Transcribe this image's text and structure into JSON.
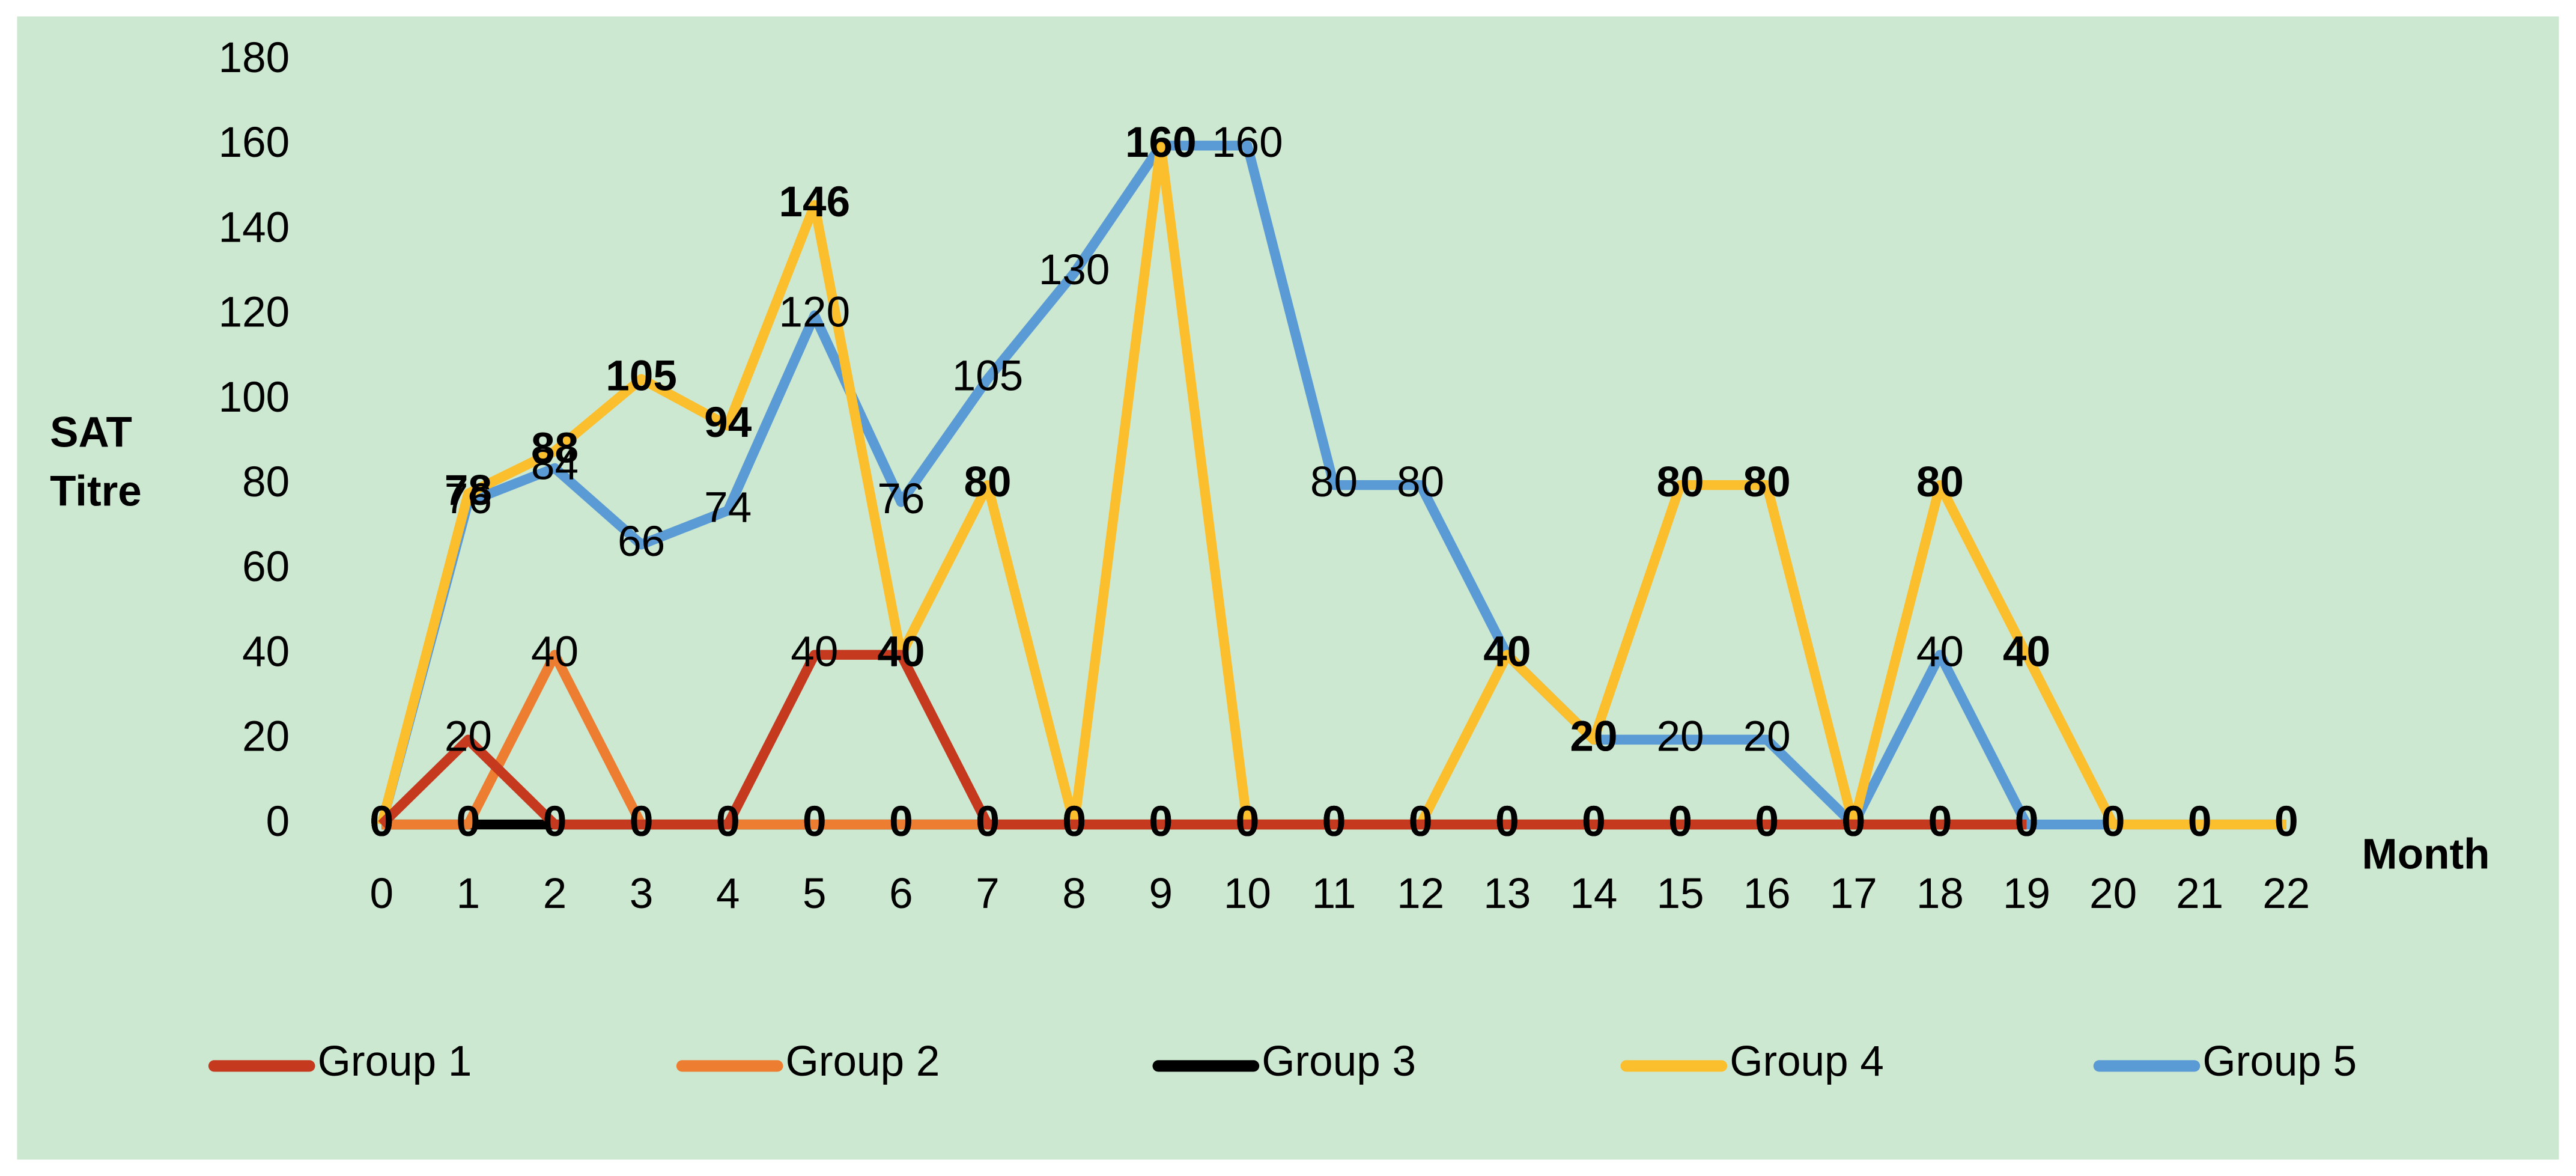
{
  "chart_data": {
    "type": "line",
    "y_label": "SAT Titre",
    "x_label": "Month",
    "categories": [
      "0",
      "1",
      "2",
      "3",
      "4",
      "5",
      "6",
      "7",
      "8",
      "9",
      "10",
      "11",
      "12",
      "13",
      "14",
      "15",
      "16",
      "17",
      "18",
      "19",
      "20",
      "21",
      "22"
    ],
    "ylim": [
      0,
      180
    ],
    "yticks": [
      0,
      20,
      40,
      60,
      80,
      100,
      120,
      140,
      160,
      180
    ],
    "grid": false,
    "legend": "bottom",
    "series": [
      {
        "name": "Group 1",
        "color": "#c5391f",
        "values": [
          0,
          20,
          0,
          0,
          0,
          40,
          40,
          0,
          0,
          0,
          0,
          0,
          0,
          0,
          0,
          0,
          0,
          0,
          0,
          0,
          null,
          null,
          null
        ]
      },
      {
        "name": "Group 2",
        "color": "#ed7d31",
        "values": [
          0,
          0,
          40,
          0,
          0,
          0,
          0,
          0,
          0,
          0,
          0,
          0,
          0,
          0,
          0,
          0,
          0,
          0,
          0,
          0,
          null,
          null,
          null
        ]
      },
      {
        "name": "Group 3",
        "color": "#000000",
        "values": [
          0,
          0,
          0,
          0,
          0,
          0,
          0,
          0,
          0,
          0,
          0,
          0,
          0,
          0,
          0,
          0,
          0,
          0,
          0,
          0,
          null,
          null,
          null
        ]
      },
      {
        "name": "Group 4",
        "color": "#fbbf2e",
        "values": [
          0,
          78,
          88,
          105,
          94,
          146,
          40,
          80,
          0,
          160,
          0,
          0,
          0,
          40,
          20,
          80,
          80,
          0,
          80,
          40,
          0,
          0,
          0
        ]
      },
      {
        "name": "Group 5",
        "color": "#5b9bd5",
        "values": [
          0,
          76,
          84,
          66,
          74,
          120,
          76,
          105,
          130,
          160,
          160,
          80,
          80,
          40,
          20,
          20,
          20,
          0,
          40,
          0,
          0,
          0,
          0
        ]
      }
    ]
  }
}
